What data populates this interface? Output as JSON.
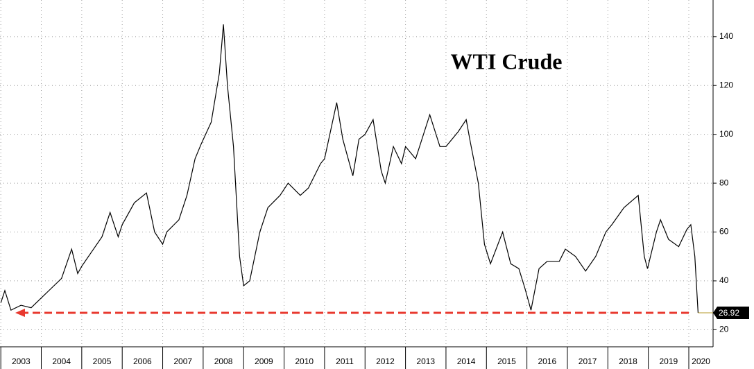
{
  "chart_data": {
    "type": "line",
    "title": "WTI Crude",
    "x": [
      2003.0,
      2003.1,
      2003.25,
      2003.5,
      2003.75,
      2004.0,
      2004.25,
      2004.5,
      2004.75,
      2004.9,
      2005.0,
      2005.25,
      2005.5,
      2005.7,
      2005.9,
      2006.0,
      2006.3,
      2006.6,
      2006.8,
      2007.0,
      2007.1,
      2007.4,
      2007.6,
      2007.8,
      2007.95,
      2008.2,
      2008.4,
      2008.5,
      2008.6,
      2008.75,
      2008.9,
      2009.0,
      2009.15,
      2009.4,
      2009.6,
      2009.9,
      2010.1,
      2010.4,
      2010.6,
      2010.9,
      2011.0,
      2011.3,
      2011.45,
      2011.7,
      2011.85,
      2012.0,
      2012.2,
      2012.4,
      2012.5,
      2012.7,
      2012.9,
      2013.0,
      2013.25,
      2013.6,
      2013.85,
      2014.0,
      2014.3,
      2014.5,
      2014.6,
      2014.8,
      2014.95,
      2015.1,
      2015.4,
      2015.6,
      2015.8,
      2015.95,
      2016.1,
      2016.3,
      2016.5,
      2016.8,
      2016.95,
      2017.2,
      2017.45,
      2017.7,
      2017.95,
      2018.1,
      2018.4,
      2018.75,
      2018.9,
      2018.98,
      2019.2,
      2019.3,
      2019.5,
      2019.75,
      2019.95,
      2020.05,
      2020.15,
      2020.23
    ],
    "series": [
      {
        "name": "WTI Crude",
        "color": "#000000",
        "values": [
          31,
          36,
          28,
          30,
          29,
          33,
          37,
          41,
          53,
          43,
          46,
          52,
          58,
          68,
          58,
          63,
          72,
          76,
          60,
          55,
          60,
          65,
          75,
          90,
          96,
          105,
          125,
          145,
          120,
          95,
          50,
          38,
          40,
          60,
          70,
          75,
          80,
          75,
          78,
          88,
          90,
          113,
          98,
          83,
          98,
          100,
          106,
          85,
          80,
          95,
          88,
          95,
          90,
          108,
          95,
          95,
          101,
          106,
          97,
          80,
          55,
          47,
          60,
          47,
          45,
          37,
          28,
          45,
          48,
          48,
          53,
          50,
          44,
          50,
          60,
          63,
          70,
          75,
          50,
          45,
          60,
          65,
          57,
          54,
          61,
          63,
          50,
          26.92
        ]
      }
    ],
    "xlim": [
      2002.98,
      2020.6
    ],
    "xticks": [
      2003,
      2004,
      2005,
      2006,
      2007,
      2008,
      2009,
      2010,
      2011,
      2012,
      2013,
      2014,
      2015,
      2016,
      2017,
      2018,
      2019,
      2020
    ],
    "ylim": [
      13,
      155
    ],
    "yticks": [
      20,
      40,
      60,
      80,
      100,
      120,
      140
    ],
    "grid": true
  }
}
